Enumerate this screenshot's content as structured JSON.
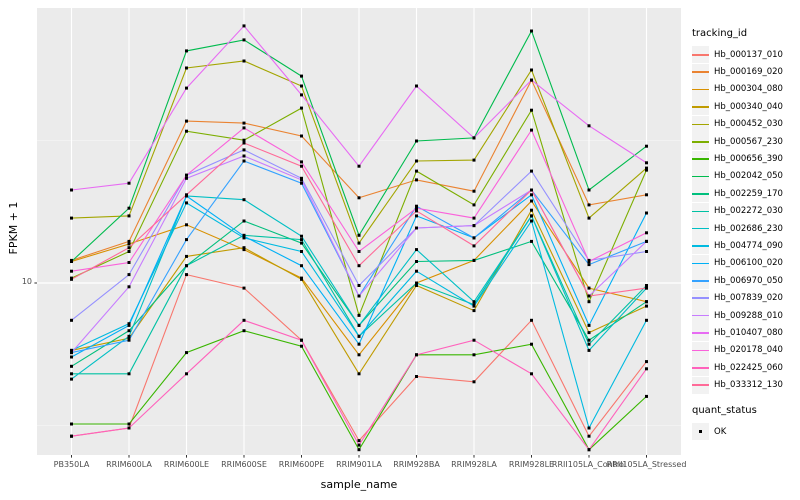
{
  "figure": {
    "panel_background": "#EBEBEB",
    "grid_color": "#FFFFFF",
    "point_color": "#000000",
    "tick_color": "#333333",
    "tick_label_color": "#4D4D4D"
  },
  "axes": {
    "x_title": "sample_name",
    "y_title": "FPKM + 1",
    "y_tick_label": "10"
  },
  "legend": {
    "tracking_title": "tracking_id",
    "quant_title": "quant_status",
    "quant_ok_label": "OK"
  },
  "chart_data": {
    "type": "line",
    "title": "",
    "xlabel": "sample_name",
    "ylabel": "FPKM + 1",
    "y_scale": "log10",
    "y_major_tick": 10,
    "ylim": [
      2.5,
      92
    ],
    "grid": true,
    "legend_position": "right",
    "marker": "black-square",
    "quant_status": {
      "label": "OK",
      "marker": "black-square"
    },
    "categories": [
      "PB350LA",
      "RRIM600LA",
      "RRIM600LE",
      "RRIM600SE",
      "RRIM600PE",
      "RRIM901LA",
      "RRIM928BA",
      "RRIM928LA",
      "RRIM928LE",
      "RRII105LA_Control",
      "RRII105LA_Stressed"
    ],
    "series": [
      {
        "name": "Hb_000137_010",
        "color": "#F8766D",
        "values": [
          2.9,
          3.1,
          10.7,
          9.6,
          6.3,
          2.8,
          4.7,
          4.5,
          7.4,
          2.9,
          5.3
        ]
      },
      {
        "name": "Hb_000169_020",
        "color": "#EA8331",
        "values": [
          12.0,
          14.0,
          37.0,
          36.4,
          32.8,
          19.9,
          23.0,
          21.0,
          51.5,
          18.8,
          20.4
        ]
      },
      {
        "name": "Hb_000304_080",
        "color": "#D89000",
        "values": [
          11.9,
          13.7,
          16.0,
          13.1,
          10.4,
          5.6,
          10.0,
          12.0,
          19.4,
          9.6,
          8.6
        ]
      },
      {
        "name": "Hb_000340_040",
        "color": "#C09B00",
        "values": [
          5.8,
          6.4,
          12.4,
          13.3,
          10.3,
          4.8,
          9.8,
          8.0,
          18.0,
          6.7,
          8.3
        ]
      },
      {
        "name": "Hb_000452_030",
        "color": "#A3A500",
        "values": [
          16.9,
          17.2,
          56.8,
          60.1,
          49.1,
          13.8,
          26.8,
          27.0,
          55.9,
          16.9,
          25.3
        ]
      },
      {
        "name": "Hb_000567_230",
        "color": "#7CAE00",
        "values": [
          10.4,
          12.9,
          34.1,
          31.7,
          41.1,
          7.7,
          24.7,
          18.8,
          40.4,
          8.6,
          24.9
        ]
      },
      {
        "name": "Hb_000656_390",
        "color": "#39B600",
        "values": [
          3.2,
          3.2,
          5.7,
          6.8,
          6.0,
          2.6,
          5.6,
          5.6,
          6.1,
          2.6,
          4.0
        ]
      },
      {
        "name": "Hb_002042_050",
        "color": "#00BB4E",
        "values": [
          11.9,
          18.3,
          65.2,
          71.3,
          53.2,
          14.7,
          31.5,
          32.3,
          76.6,
          21.2,
          30.2
        ]
      },
      {
        "name": "Hb_002259_170",
        "color": "#00BF7D",
        "values": [
          5.1,
          6.8,
          11.5,
          16.5,
          13.8,
          7.1,
          11.9,
          12.0,
          14.0,
          6.3,
          8.6
        ]
      },
      {
        "name": "Hb_002272_030",
        "color": "#00C1A3",
        "values": [
          4.8,
          4.8,
          11.5,
          14.7,
          14.2,
          6.5,
          10.0,
          8.4,
          17.2,
          6.1,
          9.8
        ]
      },
      {
        "name": "Hb_002686_230",
        "color": "#00BFC4",
        "values": [
          4.6,
          6.5,
          20.2,
          19.6,
          14.6,
          7.1,
          13.1,
          8.6,
          17.2,
          5.8,
          9.6
        ]
      },
      {
        "name": "Hb_004774_090",
        "color": "#00BAE0",
        "values": [
          5.8,
          7.2,
          19.1,
          14.4,
          12.9,
          6.5,
          11.0,
          8.3,
          16.5,
          3.1,
          7.4
        ]
      },
      {
        "name": "Hb_006100_020",
        "color": "#00B0F6",
        "values": [
          5.5,
          7.1,
          20.2,
          14.6,
          11.5,
          6.1,
          17.2,
          14.4,
          20.4,
          7.1,
          17.6
        ]
      },
      {
        "name": "Hb_006970_050",
        "color": "#35A2FF",
        "values": [
          5.7,
          6.3,
          14.2,
          26.8,
          22.4,
          9.0,
          18.6,
          14.4,
          21.2,
          11.6,
          14.0
        ]
      },
      {
        "name": "Hb_007839_020",
        "color": "#9590FF",
        "values": [
          7.4,
          10.7,
          23.9,
          29.3,
          23.3,
          9.8,
          15.6,
          15.9,
          24.7,
          12.0,
          12.9
        ]
      },
      {
        "name": "Hb_009288_010",
        "color": "#C77CFF",
        "values": [
          5.7,
          9.7,
          23.3,
          27.9,
          23.0,
          9.0,
          15.6,
          15.9,
          21.2,
          9.0,
          14.0
        ]
      },
      {
        "name": "Hb_010407_080",
        "color": "#E76BF3",
        "values": [
          21.2,
          22.4,
          48.3,
          79.8,
          45.7,
          25.7,
          49.1,
          32.3,
          51.5,
          35.6,
          26.4
        ]
      },
      {
        "name": "Hb_020178_040",
        "color": "#FA62DB",
        "values": [
          11.0,
          11.8,
          23.9,
          35.0,
          26.6,
          12.9,
          18.3,
          16.9,
          34.4,
          11.9,
          15.0
        ]
      },
      {
        "name": "Hb_022425_060",
        "color": "#FF62BC",
        "values": [
          2.9,
          3.1,
          4.8,
          7.4,
          6.3,
          2.7,
          5.6,
          6.3,
          4.8,
          2.6,
          5.0
        ]
      },
      {
        "name": "Hb_033312_130",
        "color": "#FF6A98",
        "values": [
          10.3,
          13.3,
          20.4,
          31.0,
          25.7,
          11.5,
          17.9,
          13.5,
          21.2,
          9.0,
          9.6
        ]
      }
    ]
  }
}
